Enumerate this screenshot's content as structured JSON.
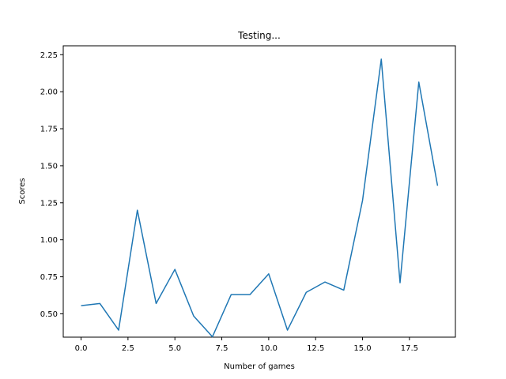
{
  "chart_data": {
    "type": "line",
    "title": "Testing...",
    "xlabel": "Number of games",
    "ylabel": "Scores",
    "xlim": [
      -0.95,
      19.95
    ],
    "ylim": [
      0.3425,
      2.31
    ],
    "xticks": [
      0.0,
      2.5,
      5.0,
      7.5,
      10.0,
      12.5,
      15.0,
      17.5
    ],
    "xtick_labels": [
      "0.0",
      "2.5",
      "5.0",
      "7.5",
      "10.0",
      "12.5",
      "15.0",
      "17.5"
    ],
    "yticks": [
      0.5,
      0.75,
      1.0,
      1.25,
      1.5,
      1.75,
      2.0,
      2.25
    ],
    "ytick_labels": [
      "0.50",
      "0.75",
      "1.00",
      "1.25",
      "1.50",
      "1.75",
      "2.00",
      "2.25"
    ],
    "grid": false,
    "series": [
      {
        "color": "#1f77b4",
        "x": [
          0,
          1,
          2,
          3,
          4,
          5,
          6,
          7,
          8,
          9,
          10,
          11,
          12,
          13,
          14,
          15,
          16,
          17,
          18,
          19
        ],
        "values": [
          0.555,
          0.57,
          0.39,
          1.2,
          0.57,
          0.8,
          0.485,
          0.345,
          0.63,
          0.63,
          0.77,
          0.39,
          0.645,
          0.715,
          0.66,
          1.265,
          2.22,
          0.71,
          2.065,
          1.365
        ]
      }
    ]
  }
}
